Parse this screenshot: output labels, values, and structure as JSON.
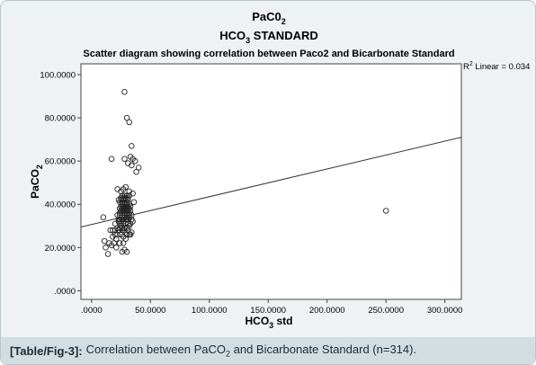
{
  "chart_data": {
    "type": "scatter",
    "title_line1": "PaC0",
    "title_line1_sub": "2",
    "title_line2": "HCO",
    "title_line2_sub": "3",
    "title_line2_rest": " STANDARD",
    "subtitle": "Scatter diagram showing correlation between Paco2 and Bicarbonate Standard",
    "xlabel": "HCO",
    "xlabel_sub": "3",
    "xlabel_rest": " std",
    "ylabel": "PaCO",
    "ylabel_sub": "2",
    "xlim": [
      -9,
      314
    ],
    "ylim": [
      -4,
      105
    ],
    "xticks": [
      0,
      50,
      100,
      150,
      200,
      250,
      300
    ],
    "xtick_labels": [
      ".0000",
      "50.0000",
      "100.0000",
      "150.0000",
      "200.0000",
      "250.0000",
      "300.0000"
    ],
    "yticks": [
      0,
      20,
      40,
      60,
      80,
      100
    ],
    "ytick_labels": [
      ".0000",
      "20.0000",
      "40.0000",
      "60.0000",
      "80.0000",
      "100.0000"
    ],
    "r2_prefix": "R",
    "r2_sup": "2",
    "r2_rest": " Linear = 0.034",
    "fit_line": {
      "x": [
        -9,
        314
      ],
      "y": [
        29.5,
        71
      ]
    },
    "points": {
      "x": [
        28,
        30,
        32,
        34,
        33,
        35,
        28,
        37,
        31,
        34,
        40,
        38,
        17,
        25,
        21,
        28,
        26,
        30,
        14,
        12,
        17,
        11,
        15,
        19,
        21,
        24,
        27,
        29,
        32,
        18,
        20,
        22,
        25,
        27,
        30,
        33,
        16,
        18,
        20,
        23,
        26,
        28,
        31,
        34,
        22,
        24,
        26,
        28,
        30,
        32,
        25,
        27,
        29,
        31,
        33,
        23,
        25,
        27,
        29,
        31,
        35,
        24,
        26,
        28,
        30,
        32,
        34,
        22,
        24,
        26,
        28,
        30,
        32,
        24,
        26,
        28,
        30,
        32,
        34,
        25,
        27,
        29,
        31,
        33,
        24,
        26,
        28,
        30,
        32,
        25,
        27,
        29,
        31,
        33,
        26,
        28,
        30,
        32,
        24,
        26,
        28,
        30,
        23,
        25,
        27,
        29,
        31,
        25,
        27,
        29,
        31,
        26,
        28,
        30,
        32,
        20,
        25,
        30,
        35,
        22,
        27,
        32,
        29,
        10,
        36,
        23,
        250
      ],
      "y": [
        92,
        80,
        78,
        67,
        62,
        61,
        61,
        60,
        59,
        58,
        57,
        55,
        61,
        46,
        20,
        19,
        18,
        18,
        17,
        20,
        21,
        23,
        22,
        22,
        24,
        22,
        22,
        24,
        26,
        25,
        26,
        26,
        26,
        25,
        26,
        26,
        28,
        28,
        28,
        28,
        28,
        28,
        28,
        27,
        29,
        29,
        29,
        29,
        29,
        30,
        31,
        31,
        31,
        31,
        31,
        32,
        32,
        32,
        33,
        33,
        32,
        33,
        33,
        34,
        34,
        34,
        33,
        35,
        35,
        35,
        35,
        35,
        35,
        36,
        36,
        36,
        36,
        36,
        35,
        37,
        37,
        37,
        37,
        37,
        38,
        38,
        38,
        38,
        38,
        39,
        39,
        39,
        39,
        39,
        40,
        40,
        40,
        40,
        41,
        41,
        41,
        41,
        42,
        42,
        42,
        42,
        42,
        43,
        43,
        43,
        43,
        44,
        44,
        44,
        44,
        31,
        30,
        33,
        45,
        47,
        47,
        46,
        48,
        34,
        41,
        33,
        37
      ]
    }
  },
  "caption": {
    "tag": "[Table/Fig-3]:",
    "text_before": "Correlation between PaCO",
    "text_sub": "2",
    "text_after": " and Bicarbonate Standard (n=314)."
  },
  "colors": {
    "frame_bg": "#eef2f3",
    "plot_bg": "#ffffff",
    "caption_bg": "#d2dde2",
    "text": "#000000"
  }
}
